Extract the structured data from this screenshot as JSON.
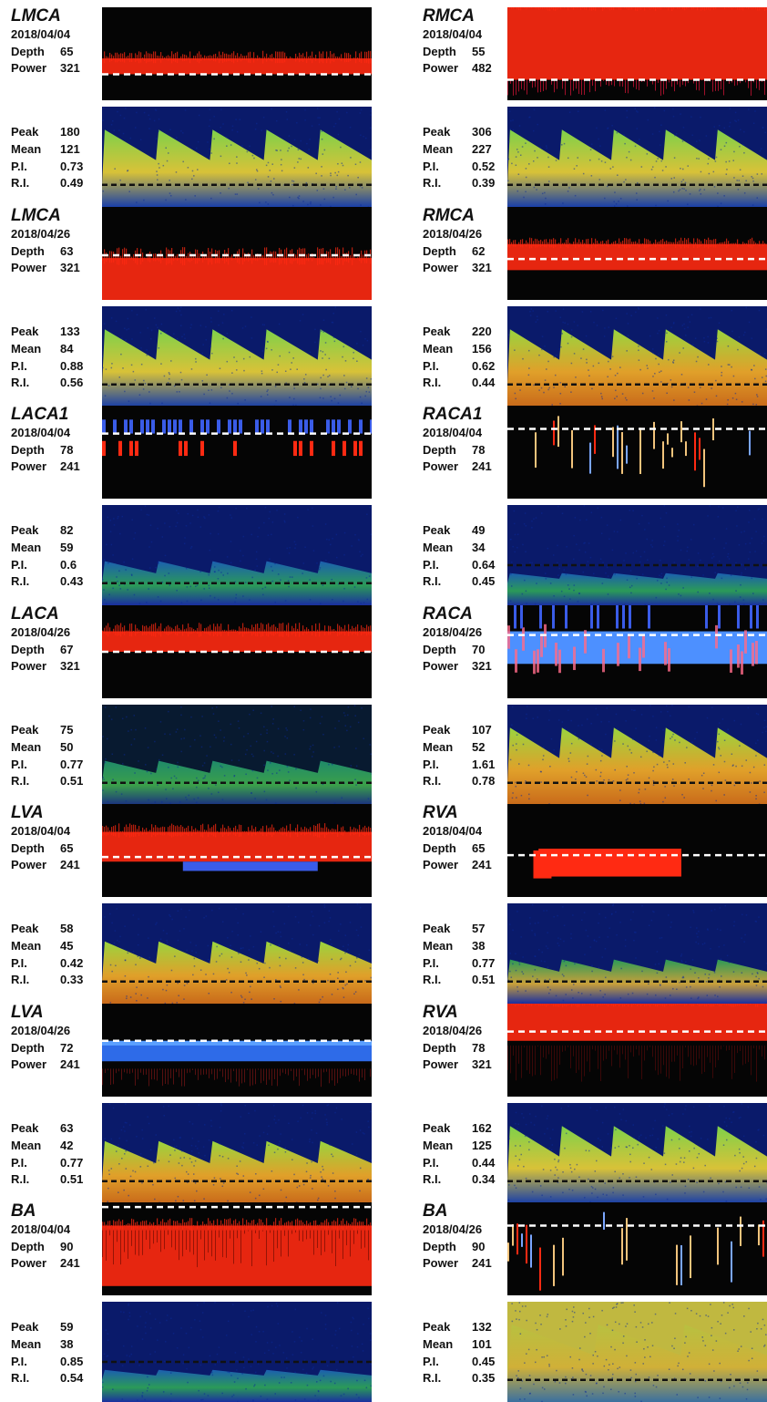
{
  "rows": [
    {
      "left": {
        "vessel": "LMCA",
        "date": "2018/04/04",
        "depth": "65",
        "power": "321",
        "peak": "180",
        "mean": "121",
        "pi": "0.73",
        "ri": "0.49",
        "mmode": "red-band-thin",
        "spectrum": "tall-waves-green"
      },
      "right": {
        "vessel": "RMCA",
        "date": "2018/04/04",
        "depth": "55",
        "power": "482",
        "peak": "306",
        "mean": "227",
        "pi": "0.52",
        "ri": "0.39",
        "mmode": "red-full",
        "spectrum": "tall-waves-green"
      }
    },
    {
      "left": {
        "vessel": "LMCA",
        "date": "2018/04/26",
        "depth": "63",
        "power": "321",
        "peak": "133",
        "mean": "84",
        "pi": "0.88",
        "ri": "0.56",
        "mmode": "red-lower",
        "spectrum": "tall-waves-green"
      },
      "right": {
        "vessel": "RMCA",
        "date": "2018/04/26",
        "depth": "62",
        "power": "321",
        "peak": "220",
        "mean": "156",
        "pi": "0.62",
        "ri": "0.44",
        "mmode": "red-mid",
        "spectrum": "tall-waves-orange"
      }
    },
    {
      "left": {
        "vessel": "LACA1",
        "date": "2018/04/04",
        "depth": "78",
        "power": "241",
        "peak": "82",
        "mean": "59",
        "pi": "0.6",
        "ri": "0.43",
        "mmode": "blue-red-sparse",
        "spectrum": "low-waves-blue"
      },
      "right": {
        "vessel": "RACA1",
        "date": "2018/04/04",
        "depth": "78",
        "power": "241",
        "peak": "49",
        "mean": "34",
        "pi": "0.64",
        "ri": "0.45",
        "mmode": "sparse-streaks",
        "spectrum": "flat-blue"
      }
    },
    {
      "left": {
        "vessel": "LACA",
        "date": "2018/04/26",
        "depth": "67",
        "power": "321",
        "peak": "75",
        "mean": "50",
        "pi": "0.77",
        "ri": "0.51",
        "mmode": "red-upper",
        "spectrum": "small-waves-dark"
      },
      "right": {
        "vessel": "RACA",
        "date": "2018/04/26",
        "depth": "70",
        "power": "321",
        "peak": "107",
        "mean": "52",
        "pi": "1.61",
        "ri": "0.78",
        "mmode": "blue-band-red",
        "spectrum": "tall-waves-orange"
      }
    },
    {
      "left": {
        "vessel": "LVA",
        "date": "2018/04/04",
        "depth": "65",
        "power": "241",
        "peak": "58",
        "mean": "45",
        "pi": "0.42",
        "ri": "0.33",
        "mmode": "red-band-blue",
        "spectrum": "mid-waves-orange"
      },
      "right": {
        "vessel": "RVA",
        "date": "2018/04/04",
        "depth": "65",
        "power": "241",
        "peak": "57",
        "mean": "38",
        "pi": "0.77",
        "ri": "0.51",
        "mmode": "red-partial",
        "spectrum": "small-waves-green"
      }
    },
    {
      "left": {
        "vessel": "LVA",
        "date": "2018/04/26",
        "depth": "72",
        "power": "241",
        "peak": "63",
        "mean": "42",
        "pi": "0.77",
        "ri": "0.51",
        "mmode": "blue-band",
        "spectrum": "mid-waves-orange"
      },
      "right": {
        "vessel": "RVA",
        "date": "2018/04/26",
        "depth": "78",
        "power": "321",
        "peak": "162",
        "mean": "125",
        "pi": "0.44",
        "ri": "0.34",
        "mmode": "red-top",
        "spectrum": "tall-waves-green"
      }
    },
    {
      "left": {
        "vessel": "BA",
        "date": "2018/04/04",
        "depth": "90",
        "power": "241",
        "peak": "59",
        "mean": "38",
        "pi": "0.85",
        "ri": "0.54",
        "mmode": "red-big",
        "spectrum": "flat-blue"
      },
      "right": {
        "vessel": "BA",
        "date": "2018/04/26",
        "depth": "90",
        "power": "241",
        "peak": "132",
        "mean": "101",
        "pi": "0.45",
        "ri": "0.35",
        "mmode": "sparse-streaks",
        "spectrum": "blocks-yellow"
      }
    }
  ],
  "labels": {
    "depth": "Depth",
    "power": "Power",
    "peak": "Peak",
    "mean": "Mean",
    "pi": "P.I.",
    "ri": "R.I."
  }
}
